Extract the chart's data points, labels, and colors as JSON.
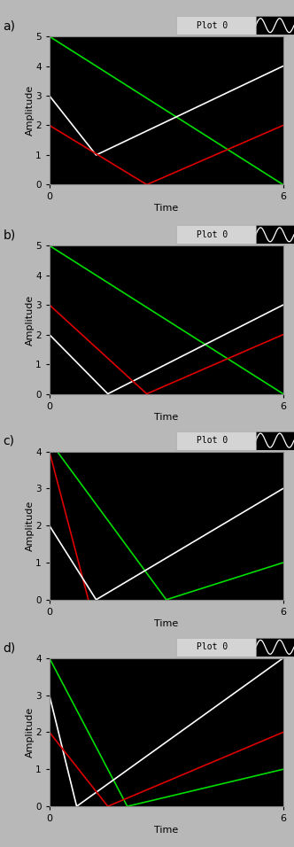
{
  "panels": [
    {
      "label": "a)",
      "ylim": [
        0,
        5
      ],
      "yticks": [
        0,
        1,
        2,
        3,
        4,
        5
      ],
      "lines": [
        {
          "color": "#00dd00",
          "x": [
            0,
            6
          ],
          "y": [
            5,
            0
          ]
        },
        {
          "color": "#ffffff",
          "x": [
            0,
            1.2,
            6
          ],
          "y": [
            3,
            1,
            4
          ]
        },
        {
          "color": "#dd0000",
          "x": [
            0,
            2.5,
            6
          ],
          "y": [
            2,
            0,
            2
          ]
        }
      ]
    },
    {
      "label": "b)",
      "ylim": [
        0,
        5
      ],
      "yticks": [
        0,
        1,
        2,
        3,
        4,
        5
      ],
      "lines": [
        {
          "color": "#00dd00",
          "x": [
            0,
            6
          ],
          "y": [
            5,
            0
          ]
        },
        {
          "color": "#ffffff",
          "x": [
            0,
            1.5,
            6
          ],
          "y": [
            2,
            0,
            3
          ]
        },
        {
          "color": "#dd0000",
          "x": [
            0,
            2.5,
            6
          ],
          "y": [
            3,
            0,
            2
          ]
        }
      ]
    },
    {
      "label": "c)",
      "ylim": [
        0,
        4
      ],
      "yticks": [
        0,
        1,
        2,
        3,
        4
      ],
      "lines": [
        {
          "color": "#dd0000",
          "x": [
            0,
            1.0
          ],
          "y": [
            4,
            0
          ]
        },
        {
          "color": "#00dd00",
          "x": [
            0.2,
            3.0,
            6
          ],
          "y": [
            4,
            0,
            1
          ]
        },
        {
          "color": "#ffffff",
          "x": [
            0,
            1.2,
            6
          ],
          "y": [
            2,
            0,
            3
          ]
        }
      ]
    },
    {
      "label": "d)",
      "ylim": [
        0,
        4
      ],
      "yticks": [
        0,
        1,
        2,
        3,
        4
      ],
      "lines": [
        {
          "color": "#00dd00",
          "x": [
            0,
            2.0,
            6
          ],
          "y": [
            4,
            0,
            1
          ]
        },
        {
          "color": "#ffffff",
          "x": [
            0,
            0.7,
            6
          ],
          "y": [
            3,
            0,
            4
          ]
        },
        {
          "color": "#dd0000",
          "x": [
            0,
            1.5,
            6
          ],
          "y": [
            2,
            0,
            2
          ]
        }
      ]
    }
  ],
  "xlabel": "Time",
  "ylabel": "Amplitude",
  "xlim": [
    0,
    6
  ],
  "xticks": [
    0,
    6
  ],
  "bg_color": "#000000",
  "outer_bg": "#b8b8b8",
  "panel_box_bg": "#c8c8c8",
  "tick_color": "#888888"
}
